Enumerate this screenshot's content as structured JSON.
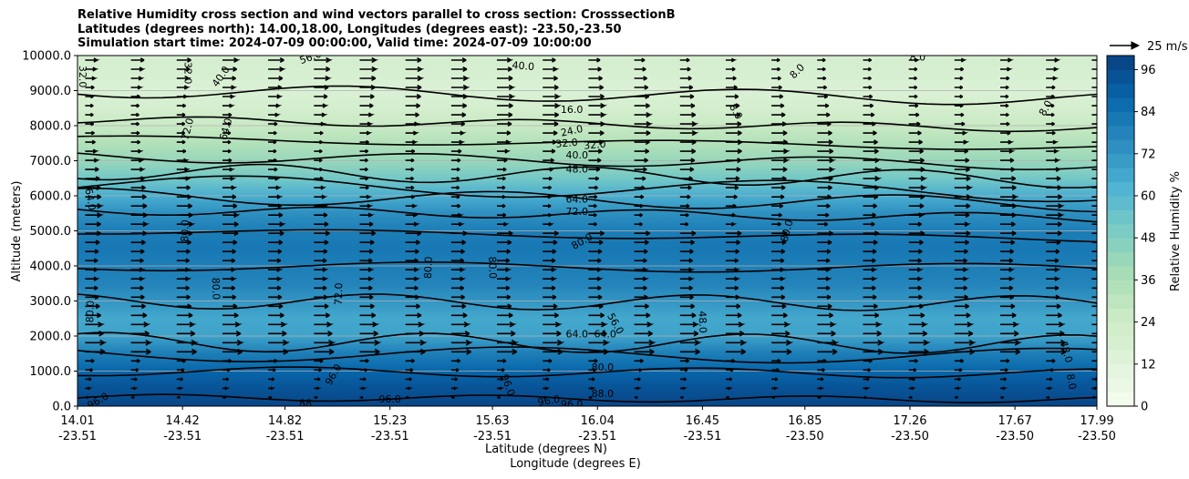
{
  "chart_data": {
    "type": "heatmap",
    "title_lines": [
      "Relative Humidity cross section and wind vectors parallel to cross section: CrosssectionB",
      "Latitudes (degrees north): 14.00,18.00, Longitudes (degrees east): -23.50,-23.50",
      "Simulation start time: 2024-07-09 00:00:00, Valid time: 2024-07-09 10:00:00"
    ],
    "ylabel": "Altitude (meters)",
    "xlabel": "Latitude (degrees N)",
    "xlabel2": "Longitude (degrees E)",
    "ylim": [
      0,
      10000
    ],
    "yticks": [
      "0.0",
      "1000.0",
      "2000.0",
      "3000.0",
      "4000.0",
      "5000.0",
      "6000.0",
      "7000.0",
      "8000.0",
      "9000.0",
      "10000.0"
    ],
    "xticks": [
      {
        "lat": "14.01",
        "lon": "-23.51"
      },
      {
        "lat": "14.42",
        "lon": "-23.51"
      },
      {
        "lat": "14.82",
        "lon": "-23.51"
      },
      {
        "lat": "15.23",
        "lon": "-23.51"
      },
      {
        "lat": "15.63",
        "lon": "-23.51"
      },
      {
        "lat": "16.04",
        "lon": "-23.51"
      },
      {
        "lat": "16.45",
        "lon": "-23.51"
      },
      {
        "lat": "16.85",
        "lon": "-23.50"
      },
      {
        "lat": "17.26",
        "lon": "-23.50"
      },
      {
        "lat": "17.67",
        "lon": "-23.50"
      },
      {
        "lat": "17.99",
        "lon": "-23.50"
      }
    ],
    "xlim": [
      14.01,
      17.99
    ],
    "colorbar": {
      "label": "Relative Humidity %",
      "ticks": [
        "0",
        "12",
        "24",
        "36",
        "48",
        "60",
        "72",
        "84",
        "96"
      ],
      "range": [
        0,
        100
      ],
      "levels": 25,
      "colors": [
        "#f7fcf0",
        "#e0f3db",
        "#ccebc5",
        "#a8ddb5",
        "#7bccc4",
        "#4eb3d3",
        "#2b8cbe",
        "#0868ac",
        "#084081"
      ]
    },
    "wind_reference": {
      "label": "25 m/s",
      "speed": 25
    },
    "humidity_profile": [
      {
        "alt": 0,
        "rh": 98
      },
      {
        "alt": 500,
        "rh": 94
      },
      {
        "alt": 1000,
        "rh": 88
      },
      {
        "alt": 1500,
        "rh": 80
      },
      {
        "alt": 2000,
        "rh": 68
      },
      {
        "alt": 2500,
        "rh": 66
      },
      {
        "alt": 3000,
        "rh": 72
      },
      {
        "alt": 3500,
        "rh": 78
      },
      {
        "alt": 4000,
        "rh": 80
      },
      {
        "alt": 4500,
        "rh": 82
      },
      {
        "alt": 5000,
        "rh": 80
      },
      {
        "alt": 5500,
        "rh": 74
      },
      {
        "alt": 6000,
        "rh": 64
      },
      {
        "alt": 6500,
        "rh": 52
      },
      {
        "alt": 7000,
        "rh": 42
      },
      {
        "alt": 7500,
        "rh": 34
      },
      {
        "alt": 8000,
        "rh": 26
      },
      {
        "alt": 8500,
        "rh": 20
      },
      {
        "alt": 9000,
        "rh": 16
      },
      {
        "alt": 9500,
        "rh": 18
      },
      {
        "alt": 10000,
        "rh": 20
      }
    ],
    "contour_levels": [
      8,
      16,
      24,
      32,
      40,
      48,
      56,
      64,
      72,
      80,
      88,
      96
    ],
    "contour_labels": [
      {
        "text": "32.0",
        "lat": 14.03,
        "alt": 9400,
        "angle": 90
      },
      {
        "text": "32.0",
        "lat": 14.44,
        "alt": 9500,
        "angle": 90
      },
      {
        "text": "40.0",
        "lat": 14.57,
        "alt": 9400,
        "angle": -55
      },
      {
        "text": "56.0",
        "lat": 14.92,
        "alt": 9950,
        "angle": -20
      },
      {
        "text": "40.0",
        "lat": 15.75,
        "alt": 9700,
        "angle": 5
      },
      {
        "text": "8.0",
        "lat": 16.82,
        "alt": 9550,
        "angle": -45
      },
      {
        "text": "8.0",
        "lat": 17.29,
        "alt": 9950,
        "angle": 0
      },
      {
        "text": "8.0",
        "lat": 16.58,
        "alt": 8400,
        "angle": 60
      },
      {
        "text": "8.0",
        "lat": 17.79,
        "alt": 8500,
        "angle": -60
      },
      {
        "text": "16.0",
        "lat": 15.94,
        "alt": 8450,
        "angle": 0
      },
      {
        "text": "24.0",
        "lat": 15.94,
        "alt": 7850,
        "angle": -12
      },
      {
        "text": "32.0",
        "lat": 15.92,
        "alt": 7500,
        "angle": -5
      },
      {
        "text": "32.0",
        "lat": 16.03,
        "alt": 7450,
        "angle": -5
      },
      {
        "text": "40.0",
        "lat": 15.96,
        "alt": 7150,
        "angle": 0
      },
      {
        "text": "48.0",
        "lat": 15.96,
        "alt": 6750,
        "angle": 0
      },
      {
        "text": "72.0",
        "lat": 14.44,
        "alt": 7900,
        "angle": -75
      },
      {
        "text": "64.0",
        "lat": 14.59,
        "alt": 7900,
        "angle": -75
      },
      {
        "text": "64.0",
        "lat": 14.06,
        "alt": 5900,
        "angle": 80
      },
      {
        "text": "64.0",
        "lat": 15.96,
        "alt": 5900,
        "angle": 0
      },
      {
        "text": "72.0",
        "lat": 15.96,
        "alt": 5550,
        "angle": 0
      },
      {
        "text": "80.0",
        "lat": 14.43,
        "alt": 5000,
        "angle": -88
      },
      {
        "text": "80.0",
        "lat": 16.78,
        "alt": 5000,
        "angle": -75
      },
      {
        "text": "80.0",
        "lat": 15.98,
        "alt": 4700,
        "angle": -30
      },
      {
        "text": "80.0",
        "lat": 15.38,
        "alt": 3950,
        "angle": -88
      },
      {
        "text": "80.0",
        "lat": 15.63,
        "alt": 3950,
        "angle": 88
      },
      {
        "text": "80.0",
        "lat": 14.55,
        "alt": 3350,
        "angle": 88
      },
      {
        "text": "72.0",
        "lat": 15.03,
        "alt": 3200,
        "angle": -88
      },
      {
        "text": "80.0",
        "lat": 14.06,
        "alt": 2700,
        "angle": -88
      },
      {
        "text": "56.0",
        "lat": 16.11,
        "alt": 2350,
        "angle": 60
      },
      {
        "text": "48.0",
        "lat": 16.45,
        "alt": 2400,
        "angle": 88
      },
      {
        "text": "64.0",
        "lat": 15.96,
        "alt": 2050,
        "angle": 0
      },
      {
        "text": "64.0",
        "lat": 16.07,
        "alt": 2050,
        "angle": 0
      },
      {
        "text": "48.0",
        "lat": 17.87,
        "alt": 1550,
        "angle": 75
      },
      {
        "text": "8.0",
        "lat": 17.89,
        "alt": 700,
        "angle": 80
      },
      {
        "text": "80.0",
        "lat": 16.06,
        "alt": 1100,
        "angle": 0
      },
      {
        "text": "88.0",
        "lat": 16.06,
        "alt": 350,
        "angle": 0
      },
      {
        "text": "96.0",
        "lat": 15.01,
        "alt": 900,
        "angle": -60
      },
      {
        "text": "96.0",
        "lat": 15.69,
        "alt": 600,
        "angle": 70
      },
      {
        "text": "96.0",
        "lat": 15.23,
        "alt": 200,
        "angle": 0
      },
      {
        "text": "96.0",
        "lat": 15.94,
        "alt": 50,
        "angle": 0
      },
      {
        "text": "96.0",
        "lat": 15.85,
        "alt": 150,
        "angle": -10
      },
      {
        "text": "96.0",
        "lat": 14.09,
        "alt": 150,
        "angle": -30
      },
      {
        "text": "88",
        "lat": 14.9,
        "alt": 80,
        "angle": 0
      }
    ]
  }
}
